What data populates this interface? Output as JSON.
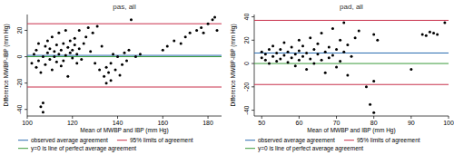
{
  "chart_data": [
    {
      "type": "scatter",
      "title": "pas, all",
      "x_label": "Mean of MWBP and IBP (mm Hg)",
      "y_label": "Difference MWBP-IBP (mm Hg)",
      "marker": "circle",
      "color": "#000000",
      "grid": false,
      "legend": "bottom",
      "x": [
        102,
        103,
        104,
        104,
        105,
        105,
        106,
        106,
        107,
        107,
        107,
        108,
        108,
        109,
        109,
        110,
        110,
        111,
        111,
        112,
        112,
        113,
        113,
        114,
        114,
        115,
        115,
        116,
        116,
        117,
        117,
        118,
        118,
        119,
        119,
        120,
        120,
        121,
        121,
        122,
        122,
        123,
        123,
        124,
        125,
        126,
        127,
        128,
        129,
        130,
        131,
        132,
        133,
        134,
        135,
        135,
        136,
        137,
        137,
        138,
        139,
        140,
        141,
        142,
        143,
        144,
        145,
        146,
        148,
        150,
        160,
        162,
        165,
        168,
        170,
        172,
        175,
        177,
        178,
        180,
        182,
        183,
        184
      ],
      "values": [
        -5,
        2,
        -8,
        5,
        -3,
        10,
        -12,
        -38,
        -42,
        -35,
        0,
        8,
        -6,
        3,
        12,
        -2,
        6,
        -10,
        15,
        0,
        4,
        -4,
        9,
        2,
        18,
        -7,
        5,
        10,
        -3,
        1,
        20,
        -15,
        7,
        3,
        12,
        -1,
        5,
        9,
        14,
        -5,
        2,
        6,
        20,
        -2,
        10,
        15,
        22,
        4,
        18,
        -5,
        23,
        -10,
        8,
        -15,
        -20,
        -8,
        -12,
        -5,
        -18,
        2,
        -10,
        0,
        -14,
        -6,
        3,
        -3,
        5,
        28,
        0,
        2,
        5,
        8,
        12,
        10,
        15,
        18,
        20,
        22,
        18,
        25,
        28,
        30,
        20
      ],
      "xlim": [
        100,
        186
      ],
      "xticks": [
        100,
        120,
        140,
        160,
        180
      ],
      "ylim": [
        -45,
        32
      ],
      "yticks": [
        -40,
        -20,
        0,
        20
      ],
      "reference_lines": [
        {
          "name": "observed average agreement",
          "color": "#2b6cb0",
          "values": [
            1
          ]
        },
        {
          "name": "95% limits of agreement",
          "color": "#c8304a",
          "values": [
            25,
            -23
          ]
        },
        {
          "name": "y=0 is line of perfect average agreement",
          "color": "#3a9a3a",
          "values": [
            0
          ]
        }
      ]
    },
    {
      "type": "scatter",
      "title": "pad, all",
      "x_label": "Mean of MWBP and IBP (mm Hg)",
      "y_label": "Difference MWBP-IBP (mm Hg)",
      "marker": "circle",
      "color": "#000000",
      "grid": false,
      "legend": "bottom",
      "x": [
        50,
        50,
        51,
        51,
        52,
        52,
        53,
        53,
        54,
        54,
        55,
        55,
        56,
        56,
        57,
        57,
        58,
        58,
        59,
        59,
        60,
        60,
        60,
        61,
        61,
        62,
        62,
        63,
        63,
        64,
        64,
        65,
        65,
        66,
        66,
        67,
        67,
        68,
        68,
        69,
        69,
        70,
        70,
        71,
        71,
        72,
        72,
        73,
        73,
        74,
        75,
        76,
        78,
        79,
        80,
        80,
        80,
        81,
        90,
        93,
        94,
        95,
        96,
        97,
        99
      ],
      "values": [
        5,
        10,
        3,
        8,
        12,
        0,
        6,
        15,
        2,
        9,
        4,
        12,
        7,
        18,
        1,
        10,
        5,
        14,
        8,
        -2,
        3,
        11,
        20,
        6,
        15,
        9,
        -5,
        4,
        22,
        12,
        0,
        8,
        17,
        3,
        26,
        10,
        -8,
        14,
        5,
        30,
        7,
        12,
        -3,
        20,
        2,
        35,
        10,
        16,
        -10,
        6,
        22,
        28,
        -20,
        -35,
        -42,
        -15,
        25,
        20,
        -5,
        25,
        24,
        27,
        26,
        25,
        35
      ],
      "xlim": [
        48,
        100
      ],
      "xticks": [
        50,
        60,
        70,
        80,
        90,
        100
      ],
      "ylim": [
        -45,
        42
      ],
      "yticks": [
        -40,
        -20,
        0,
        20,
        40
      ],
      "reference_lines": [
        {
          "name": "observed average agreement",
          "color": "#2b6cb0",
          "values": [
            9
          ]
        },
        {
          "name": "95% limits of agreement",
          "color": "#c8304a",
          "values": [
            37,
            -18
          ]
        },
        {
          "name": "y=0 is line of perfect average agreement",
          "color": "#3a9a3a",
          "values": [
            0
          ]
        }
      ]
    }
  ]
}
